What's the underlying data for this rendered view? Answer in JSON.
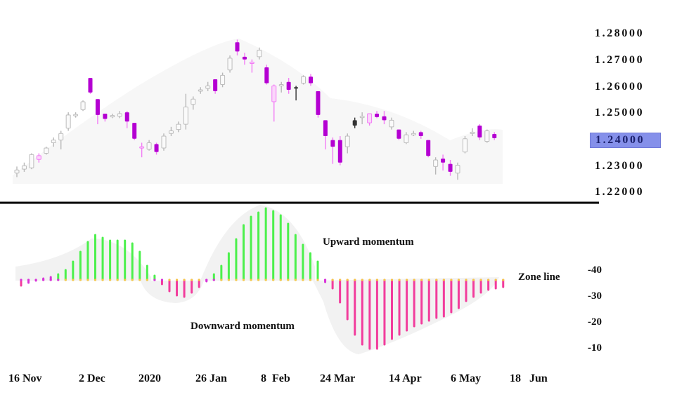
{
  "chart_data": [
    {
      "type": "candlestick",
      "title": "",
      "ylabel": "",
      "ylim": [
        1.22,
        1.28
      ],
      "y_ticks": [
        "1.28000",
        "1.27000",
        "1.26000",
        "1.25000",
        "1.24000",
        "1.23000",
        "1.22000"
      ],
      "highlighted_tick": "1.24000",
      "x_ticks": [
        "16 Nov",
        "2 Dec",
        "2020",
        "26 Jan",
        "8  Feb",
        "24 Mar",
        "14 Apr",
        "6 May",
        "18   Jun"
      ],
      "candles": [
        {
          "o": 1.227,
          "h": 1.2295,
          "l": 1.2255,
          "c": 1.2282,
          "color": "gray"
        },
        {
          "o": 1.2285,
          "h": 1.231,
          "l": 1.2275,
          "c": 1.2298,
          "color": "gray"
        },
        {
          "o": 1.229,
          "h": 1.2345,
          "l": 1.2285,
          "c": 1.234,
          "color": "gray"
        },
        {
          "o": 1.2322,
          "h": 1.2345,
          "l": 1.231,
          "c": 1.2336,
          "color": "pink"
        },
        {
          "o": 1.2345,
          "h": 1.237,
          "l": 1.234,
          "c": 1.2365,
          "color": "gray"
        },
        {
          "o": 1.2385,
          "h": 1.2405,
          "l": 1.237,
          "c": 1.2395,
          "color": "gray"
        },
        {
          "o": 1.2395,
          "h": 1.243,
          "l": 1.236,
          "c": 1.242,
          "color": "gray"
        },
        {
          "o": 1.244,
          "h": 1.25,
          "l": 1.243,
          "c": 1.249,
          "color": "gray"
        },
        {
          "o": 1.249,
          "h": 1.25,
          "l": 1.248,
          "c": 1.2492,
          "color": "gray"
        },
        {
          "o": 1.251,
          "h": 1.2545,
          "l": 1.2505,
          "c": 1.254,
          "color": "gray"
        },
        {
          "o": 1.263,
          "h": 1.263,
          "l": 1.257,
          "c": 1.2575,
          "color": "purple"
        },
        {
          "o": 1.255,
          "h": 1.255,
          "l": 1.2455,
          "c": 1.249,
          "color": "purple"
        },
        {
          "o": 1.2495,
          "h": 1.2495,
          "l": 1.2465,
          "c": 1.2475,
          "color": "purple"
        },
        {
          "o": 1.2485,
          "h": 1.2495,
          "l": 1.2478,
          "c": 1.2488,
          "color": "gray"
        },
        {
          "o": 1.2485,
          "h": 1.2505,
          "l": 1.2478,
          "c": 1.2495,
          "color": "gray"
        },
        {
          "o": 1.25,
          "h": 1.2505,
          "l": 1.244,
          "c": 1.2465,
          "color": "purple"
        },
        {
          "o": 1.246,
          "h": 1.246,
          "l": 1.2395,
          "c": 1.24,
          "color": "purple"
        },
        {
          "o": 1.237,
          "h": 1.2385,
          "l": 1.233,
          "c": 1.2365,
          "color": "pink"
        },
        {
          "o": 1.236,
          "h": 1.2395,
          "l": 1.2355,
          "c": 1.2385,
          "color": "gray"
        },
        {
          "o": 1.238,
          "h": 1.2385,
          "l": 1.234,
          "c": 1.235,
          "color": "purple"
        },
        {
          "o": 1.2365,
          "h": 1.242,
          "l": 1.2355,
          "c": 1.241,
          "color": "gray"
        },
        {
          "o": 1.242,
          "h": 1.2445,
          "l": 1.241,
          "c": 1.243,
          "color": "gray"
        },
        {
          "o": 1.2435,
          "h": 1.2465,
          "l": 1.2425,
          "c": 1.2455,
          "color": "gray"
        },
        {
          "o": 1.2455,
          "h": 1.257,
          "l": 1.2435,
          "c": 1.252,
          "color": "gray"
        },
        {
          "o": 1.253,
          "h": 1.256,
          "l": 1.251,
          "c": 1.255,
          "color": "gray"
        },
        {
          "o": 1.258,
          "h": 1.2595,
          "l": 1.257,
          "c": 1.2585,
          "color": "gray"
        },
        {
          "o": 1.259,
          "h": 1.2615,
          "l": 1.258,
          "c": 1.26,
          "color": "gray"
        },
        {
          "o": 1.2625,
          "h": 1.2625,
          "l": 1.257,
          "c": 1.258,
          "color": "purple"
        },
        {
          "o": 1.2605,
          "h": 1.265,
          "l": 1.2595,
          "c": 1.264,
          "color": "gray"
        },
        {
          "o": 1.266,
          "h": 1.2715,
          "l": 1.265,
          "c": 1.2705,
          "color": "gray"
        },
        {
          "o": 1.2765,
          "h": 1.2775,
          "l": 1.2715,
          "c": 1.273,
          "color": "purple"
        },
        {
          "o": 1.271,
          "h": 1.2725,
          "l": 1.268,
          "c": 1.27,
          "color": "purple"
        },
        {
          "o": 1.269,
          "h": 1.27,
          "l": 1.265,
          "c": 1.269,
          "color": "pink"
        },
        {
          "o": 1.271,
          "h": 1.2745,
          "l": 1.27,
          "c": 1.2735,
          "color": "gray"
        },
        {
          "o": 1.267,
          "h": 1.268,
          "l": 1.2605,
          "c": 1.261,
          "color": "purple"
        },
        {
          "o": 1.26,
          "h": 1.2605,
          "l": 1.2465,
          "c": 1.254,
          "color": "pink"
        },
        {
          "o": 1.26,
          "h": 1.2615,
          "l": 1.2575,
          "c": 1.2605,
          "color": "gray"
        },
        {
          "o": 1.2615,
          "h": 1.263,
          "l": 1.257,
          "c": 1.2585,
          "color": "purple"
        },
        {
          "o": 1.2595,
          "h": 1.26,
          "l": 1.2545,
          "c": 1.259,
          "color": "black"
        },
        {
          "o": 1.261,
          "h": 1.264,
          "l": 1.2605,
          "c": 1.2635,
          "color": "gray"
        },
        {
          "o": 1.2635,
          "h": 1.2645,
          "l": 1.26,
          "c": 1.261,
          "color": "purple"
        },
        {
          "o": 1.258,
          "h": 1.258,
          "l": 1.248,
          "c": 1.249,
          "color": "purple"
        },
        {
          "o": 1.247,
          "h": 1.247,
          "l": 1.236,
          "c": 1.241,
          "color": "purple"
        },
        {
          "o": 1.2395,
          "h": 1.2405,
          "l": 1.2305,
          "c": 1.237,
          "color": "purple"
        },
        {
          "o": 1.2395,
          "h": 1.241,
          "l": 1.23,
          "c": 1.231,
          "color": "purple"
        },
        {
          "o": 1.237,
          "h": 1.242,
          "l": 1.2345,
          "c": 1.241,
          "color": "gray"
        },
        {
          "o": 1.245,
          "h": 1.248,
          "l": 1.244,
          "c": 1.247,
          "color": "black"
        },
        {
          "o": 1.248,
          "h": 1.25,
          "l": 1.2455,
          "c": 1.2485,
          "color": "gray"
        },
        {
          "o": 1.2495,
          "h": 1.2495,
          "l": 1.245,
          "c": 1.246,
          "color": "pink"
        },
        {
          "o": 1.2495,
          "h": 1.2505,
          "l": 1.2478,
          "c": 1.2482,
          "color": "purple"
        },
        {
          "o": 1.2485,
          "h": 1.2505,
          "l": 1.2455,
          "c": 1.247,
          "color": "purple"
        },
        {
          "o": 1.2445,
          "h": 1.248,
          "l": 1.2435,
          "c": 1.247,
          "color": "gray"
        },
        {
          "o": 1.2435,
          "h": 1.2435,
          "l": 1.2395,
          "c": 1.24,
          "color": "purple"
        },
        {
          "o": 1.2385,
          "h": 1.2425,
          "l": 1.238,
          "c": 1.2415,
          "color": "gray"
        },
        {
          "o": 1.242,
          "h": 1.243,
          "l": 1.241,
          "c": 1.242,
          "color": "gray"
        },
        {
          "o": 1.2425,
          "h": 1.243,
          "l": 1.24,
          "c": 1.241,
          "color": "purple"
        },
        {
          "o": 1.2395,
          "h": 1.2395,
          "l": 1.233,
          "c": 1.2335,
          "color": "purple"
        },
        {
          "o": 1.2295,
          "h": 1.233,
          "l": 1.2265,
          "c": 1.232,
          "color": "gray"
        },
        {
          "o": 1.2325,
          "h": 1.234,
          "l": 1.228,
          "c": 1.231,
          "color": "purple"
        },
        {
          "o": 1.2305,
          "h": 1.232,
          "l": 1.226,
          "c": 1.2275,
          "color": "purple"
        },
        {
          "o": 1.227,
          "h": 1.231,
          "l": 1.2245,
          "c": 1.23,
          "color": "gray"
        },
        {
          "o": 1.235,
          "h": 1.241,
          "l": 1.2345,
          "c": 1.24,
          "color": "gray"
        },
        {
          "o": 1.242,
          "h": 1.244,
          "l": 1.241,
          "c": 1.2425,
          "color": "gray"
        },
        {
          "o": 1.245,
          "h": 1.2455,
          "l": 1.2395,
          "c": 1.2405,
          "color": "purple"
        },
        {
          "o": 1.239,
          "h": 1.2435,
          "l": 1.2385,
          "c": 1.243,
          "color": "gray"
        },
        {
          "o": 1.2418,
          "h": 1.2425,
          "l": 1.2395,
          "c": 1.2402,
          "color": "purple"
        }
      ]
    },
    {
      "type": "bar",
      "title": "",
      "subtype": "momentum histogram",
      "y_ticks": [
        "-40",
        "-30",
        "-20",
        "-10"
      ],
      "zone_line_label": "Zone line",
      "annotations": [
        "Upward momentum",
        "Downward momentum"
      ],
      "series": [
        {
          "name": "momentum",
          "values": [
            -8,
            -4,
            -1,
            2,
            4,
            8,
            14,
            26,
            40,
            54,
            64,
            60,
            56,
            56,
            56,
            52,
            40,
            20,
            6,
            -6,
            -16,
            -22,
            -24,
            -18,
            -10,
            -2,
            8,
            20,
            38,
            58,
            78,
            90,
            96,
            102,
            98,
            92,
            80,
            64,
            50,
            38,
            26,
            -3,
            -12,
            -32,
            -56,
            -78,
            -92,
            -98,
            -98,
            -92,
            -84,
            -78,
            -72,
            -66,
            -62,
            -58,
            -54,
            -52,
            -46,
            -40,
            -30,
            -24,
            -18,
            -14,
            -12,
            -10
          ],
          "colors_rule": "green >=0 & rising phase, pink below zone line, magenta small"
        }
      ],
      "x_ticks": [
        "16 Nov",
        "2 Dec",
        "2020",
        "26 Jan",
        "8  Feb",
        "24 Mar",
        "14 Apr",
        "6 May",
        "18   Jun"
      ]
    }
  ],
  "price_axis": {
    "ticks": [
      "1.28000",
      "1.27000",
      "1.26000",
      "1.25000",
      "1.24000",
      "1.23000",
      "1.22000"
    ],
    "highlight": "1.24000",
    "highlight_color": "#8590ea"
  },
  "momentum_axis": {
    "ticks": [
      "-40",
      "-30",
      "-20",
      "-10"
    ]
  },
  "annotations": {
    "upward": "Upward momentum",
    "downward": "Downward momentum",
    "zone_line": "Zone line"
  },
  "date_axis": {
    "labels": [
      "16 Nov",
      "2 Dec",
      "2020",
      "26 Jan",
      "8  Feb",
      "24 Mar",
      "14 Apr",
      "6 May",
      "18   Jun"
    ]
  },
  "colors": {
    "bull_candle": "#c8c8c8",
    "bear_candle": "#b400d2",
    "pink_candle": "#f27df5",
    "dark_candle": "#333333",
    "momentum_up": "#4cf04c",
    "momentum_down": "#f23c9c",
    "momentum_small": "#d933d9",
    "zone_dot": "#f5c64a",
    "separator": "#000000"
  }
}
